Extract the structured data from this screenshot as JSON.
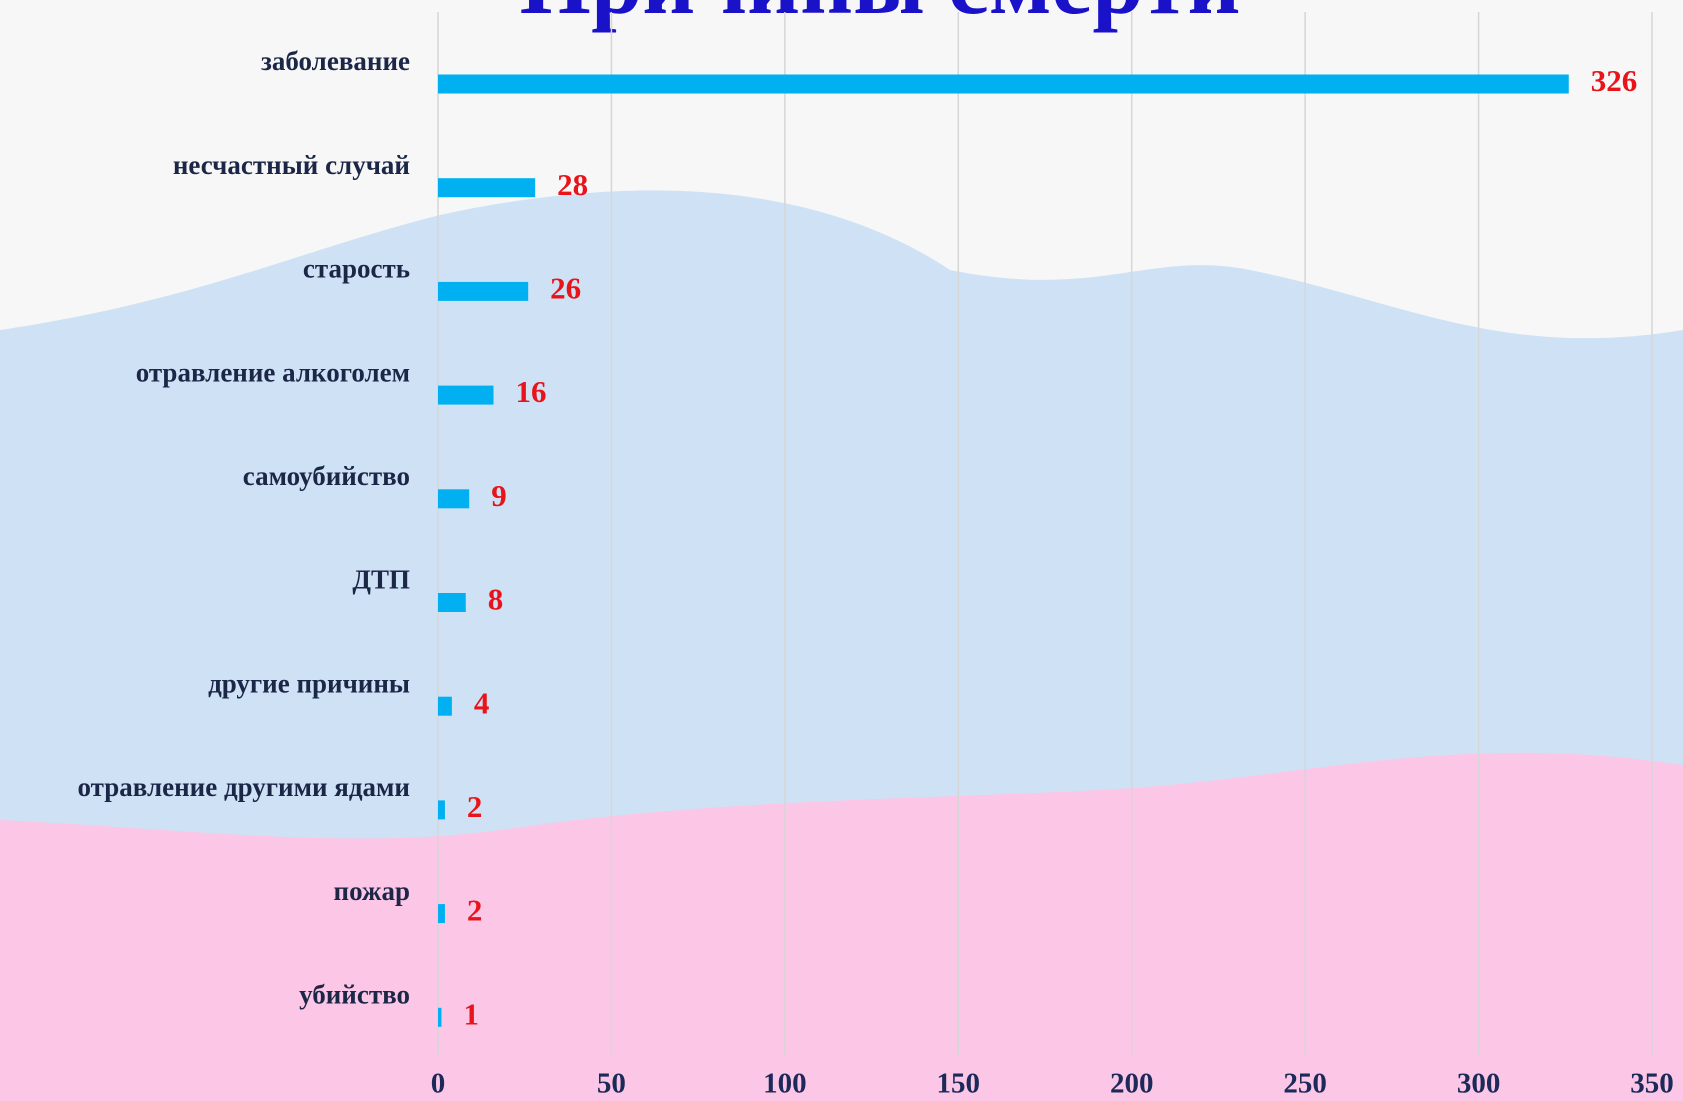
{
  "chart_data": {
    "type": "bar",
    "orientation": "horizontal",
    "title": "Причины смерти",
    "categories": [
      "заболевание",
      "несчастный случай",
      "старость",
      "отравление алкоголем",
      "самоубийство",
      "ДТП",
      "другие причины",
      "отравление другими ядами",
      "пожар",
      "убийство"
    ],
    "values": [
      326,
      28,
      26,
      16,
      9,
      8,
      4,
      2,
      2,
      1
    ],
    "color": "#00b0f0",
    "label_color": "#e8141a",
    "xlim": [
      0,
      350
    ],
    "xticks": [
      0,
      50,
      100,
      150,
      200,
      250,
      300,
      350
    ],
    "grid": true
  }
}
